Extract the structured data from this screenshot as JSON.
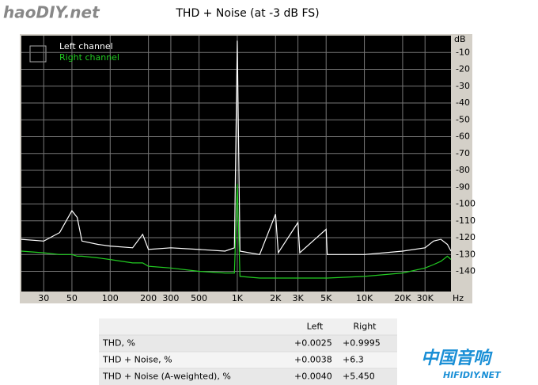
{
  "chart_data": {
    "type": "line",
    "title": "THD + Noise (at -3 dB FS)",
    "x_label": "Hz",
    "y_label": "dB",
    "x": [
      20,
      30,
      40,
      50,
      55,
      60,
      80,
      100,
      150,
      180,
      200,
      300,
      500,
      800,
      950,
      1000,
      1050,
      1500,
      2000,
      2100,
      3000,
      3100,
      5000,
      5100,
      10000,
      20000,
      30000,
      35000,
      40000,
      45000,
      48000
    ],
    "series": [
      {
        "name": "Left channel",
        "color": "#ffffff",
        "values": [
          -121,
          -122,
          -117,
          -104,
          -108,
          -122,
          -124,
          -125,
          -126,
          -118,
          -127,
          -126,
          -127,
          -128,
          -126,
          -3,
          -128,
          -130,
          -106,
          -129,
          -111,
          -129,
          -115,
          -130,
          -130,
          -128,
          -126,
          -122,
          -121,
          -124,
          -128
        ]
      },
      {
        "name": "Right channel",
        "color": "#22cc22",
        "values": [
          -128,
          -129,
          -130,
          -130,
          -131,
          -131,
          -132,
          -133,
          -135,
          -135,
          -137,
          -138,
          -140,
          -141,
          -141,
          -88,
          -143,
          -144,
          -144,
          -144,
          -144,
          -144,
          -144,
          -144,
          -143,
          -141,
          -138,
          -136,
          -134,
          -131,
          -133
        ]
      }
    ],
    "log_x": true,
    "xlim": [
      20,
      48000
    ],
    "xticks": [
      30,
      50,
      100,
      200,
      300,
      500,
      {
        "value": 1000,
        "label": "1K"
      },
      {
        "value": 2000,
        "label": "2K"
      },
      {
        "value": 3000,
        "label": "3K"
      },
      {
        "value": 5000,
        "label": "5K"
      },
      {
        "value": 10000,
        "label": "10K"
      },
      {
        "value": 20000,
        "label": "20K"
      },
      {
        "value": 30000,
        "label": "30K"
      }
    ],
    "ylim": [
      -152,
      0
    ],
    "yticks": [
      -10,
      -20,
      -30,
      -40,
      -50,
      -60,
      -70,
      -80,
      -90,
      -100,
      -110,
      -120,
      -130,
      -140
    ],
    "grid": true,
    "legend": "upper left"
  },
  "table": {
    "header": [
      "Left",
      "Right"
    ],
    "rows": [
      [
        "THD, %",
        "+0.0025",
        "+0.9995"
      ],
      [
        "THD + Noise, %",
        "+0.0038",
        "+6.3"
      ],
      [
        "THD + Noise (A-weighted), %",
        "+0.0040",
        "+5.450"
      ]
    ]
  },
  "watermarks": [
    "haoDIY.net",
    "中国音响",
    "HIFIDIY.NET"
  ]
}
